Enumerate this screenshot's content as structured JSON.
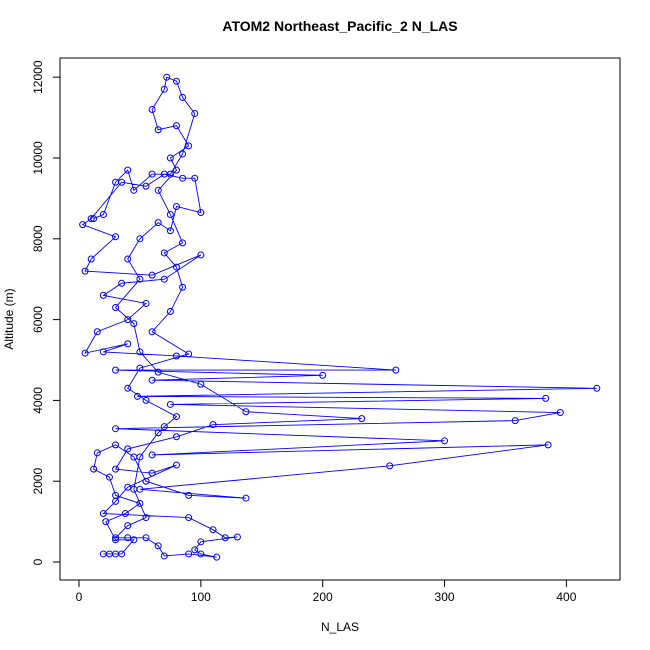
{
  "chart_data": {
    "type": "line",
    "title": "ATOM2 Northeast_Pacific_2 N_LAS",
    "x_label": "N_LAS",
    "y_label": "Altitude (m)",
    "color": "#0000ff",
    "xlim": [
      -15.6,
      444
    ],
    "ylim": [
      -445,
      12475
    ],
    "xticks": [
      0,
      100,
      200,
      300,
      400
    ],
    "yticks": [
      0,
      2000,
      4000,
      6000,
      8000,
      10000,
      12000
    ],
    "x": [
      20,
      25,
      30,
      35,
      45,
      30,
      22,
      38,
      50,
      30,
      25,
      12,
      15,
      30,
      45,
      55,
      90,
      137,
      50,
      255,
      385,
      60,
      300,
      30,
      358,
      395,
      75,
      383,
      48,
      425,
      60,
      200,
      30,
      260,
      80,
      20,
      40,
      5,
      15,
      40,
      55,
      20,
      35,
      70,
      100,
      60,
      5,
      10,
      30,
      3,
      10,
      35,
      55,
      70,
      85,
      95,
      100,
      80,
      75,
      65,
      50,
      40,
      50,
      30,
      45,
      50,
      65,
      100,
      137,
      232,
      110,
      80,
      40,
      30,
      60,
      80,
      40,
      30,
      20,
      90,
      110,
      120,
      130,
      100,
      95,
      100,
      113,
      90,
      70,
      65,
      55,
      40,
      30,
      40,
      55,
      45,
      50,
      65,
      70,
      80,
      55,
      40,
      50,
      90,
      60,
      75,
      85,
      80,
      70,
      85,
      75,
      65,
      80,
      75,
      90,
      80,
      65,
      60,
      70,
      72,
      80,
      85,
      95,
      85,
      75,
      60,
      45,
      40,
      30,
      20,
      12
    ],
    "values": [
      200,
      200,
      200,
      200,
      550,
      550,
      1000,
      1200,
      1450,
      1650,
      2100,
      2300,
      2700,
      2900,
      2600,
      2000,
      1650,
      1580,
      1800,
      2380,
      2900,
      2650,
      3000,
      3300,
      3500,
      3700,
      3900,
      4050,
      4100,
      4300,
      4500,
      4620,
      4750,
      4750,
      5100,
      5200,
      5400,
      5170,
      5700,
      6000,
      6400,
      6600,
      6900,
      7000,
      7600,
      7100,
      7200,
      7500,
      8050,
      8350,
      8500,
      9400,
      9300,
      9600,
      9500,
      9500,
      8650,
      8800,
      8200,
      8400,
      8000,
      7500,
      7000,
      6300,
      5900,
      5200,
      4700,
      4400,
      3720,
      3550,
      3400,
      3100,
      2800,
      2300,
      2200,
      2400,
      1850,
      1500,
      1200,
      1100,
      800,
      600,
      620,
      500,
      300,
      200,
      120,
      200,
      150,
      400,
      600,
      600,
      600,
      900,
      1100,
      1800,
      2600,
      3200,
      3350,
      3600,
      4000,
      4300,
      4800,
      5150,
      5700,
      6200,
      6800,
      7300,
      7650,
      7900,
      8600,
      9200,
      9700,
      10000,
      10300,
      10800,
      10700,
      11200,
      11700,
      12000,
      11900,
      11500,
      11100,
      10100,
      9600,
      9600,
      9200,
      9700,
      9400,
      8600,
      8500
    ]
  }
}
